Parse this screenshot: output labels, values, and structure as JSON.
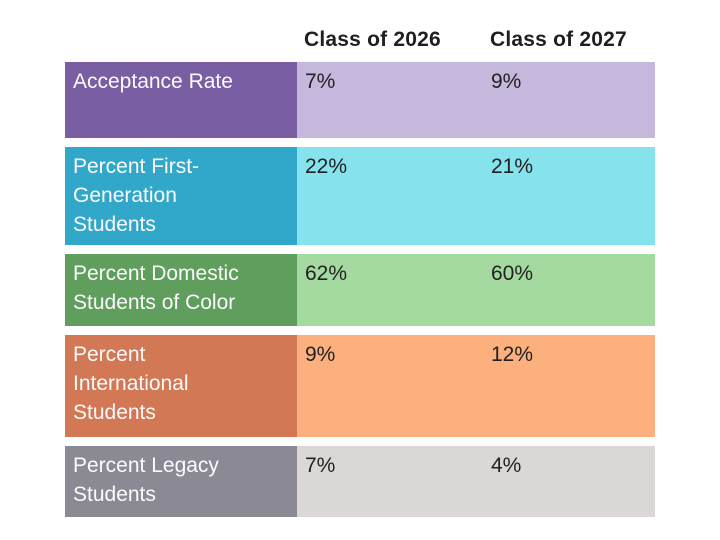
{
  "header": {
    "columns": [
      "Class of 2026",
      "Class of 2027"
    ]
  },
  "table": {
    "rows": [
      {
        "label": "Acceptance Rate",
        "values": [
          "7%",
          "9%"
        ],
        "label_bg": "#7a5ea3",
        "value_bg": "#c6b7dc"
      },
      {
        "label": "Percent First-\nGeneration\nStudents",
        "values": [
          "22%",
          "21%"
        ],
        "label_bg": "#31a8c9",
        "value_bg": "#86e3ed"
      },
      {
        "label": "Percent Domestic\nStudents of Color",
        "values": [
          "62%",
          "60%"
        ],
        "label_bg": "#5f9e5c",
        "value_bg": "#a4d9a0"
      },
      {
        "label": "Percent\nInternational\nStudents",
        "values": [
          "9%",
          "12%"
        ],
        "label_bg": "#d27854",
        "value_bg": "#fbb07d"
      },
      {
        "label": "Percent Legacy\nStudents",
        "values": [
          "7%",
          "4%"
        ],
        "label_bg": "#8b8994",
        "value_bg": "#dad7d6"
      }
    ]
  },
  "colors": {
    "background": "#ffffff",
    "header_text": "#1f1f1f",
    "value_text": "#222222",
    "label_text": "#fbfafc"
  },
  "chart_data": {
    "type": "table",
    "columns": [
      "",
      "Class of 2026",
      "Class of 2027"
    ],
    "rows": [
      {
        "label": "Acceptance Rate",
        "class_of_2026": "7%",
        "class_of_2027": "9%"
      },
      {
        "label": "Percent First-Generation Students",
        "class_of_2026": "22%",
        "class_of_2027": "21%"
      },
      {
        "label": "Percent Domestic Students of Color",
        "class_of_2026": "62%",
        "class_of_2027": "60%"
      },
      {
        "label": "Percent International Students",
        "class_of_2026": "9%",
        "class_of_2027": "12%"
      },
      {
        "label": "Percent Legacy Students",
        "class_of_2026": "7%",
        "class_of_2027": "4%"
      }
    ],
    "title": "",
    "legend_position": "none",
    "grid": false
  }
}
